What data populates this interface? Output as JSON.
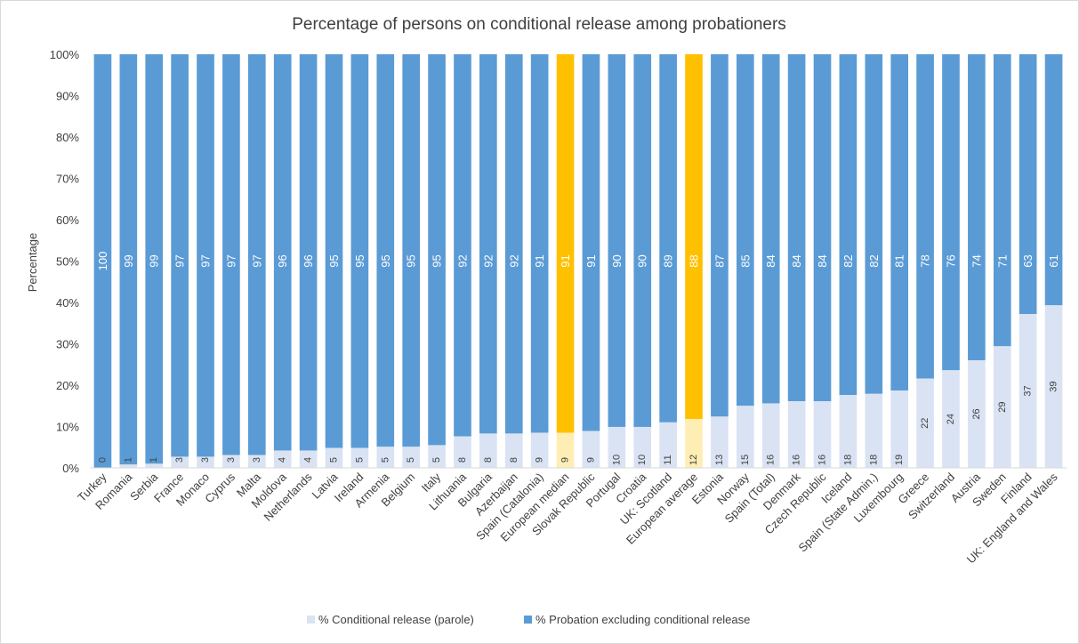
{
  "chart_data": {
    "type": "bar",
    "stacked": true,
    "title": "Percentage of persons on conditional release among probationers",
    "ylabel": "Percentage",
    "ylim": [
      0,
      100
    ],
    "yticks": [
      "0%",
      "10%",
      "20%",
      "30%",
      "40%",
      "50%",
      "60%",
      "70%",
      "80%",
      "90%",
      "100%"
    ],
    "grid": false,
    "legend_position": "bottom",
    "categories": [
      "Turkey",
      "Romania",
      "Serbia",
      "France",
      "Monaco",
      "Cyprus",
      "Malta",
      "Moldova",
      "Netherlands",
      "Latvia",
      "Ireland",
      "Armenia",
      "Belgium",
      "Italy",
      "Lithuania",
      "Bulgaria",
      "Azerbaijan",
      "Spain (Catalonia)",
      "European median",
      "Slovak Republic",
      "Portugal",
      "Croatia",
      "UK: Scotland",
      "European average",
      "Estonia",
      "Norway",
      "Spain (Total)",
      "Denmark",
      "Czech Republic",
      "Iceland",
      "Spain (State Admin.)",
      "Luxembourg",
      "Greece",
      "Switzerland",
      "Austria",
      "Sweden",
      "Finland",
      "UK: England and Wales"
    ],
    "highlighted_categories": [
      "European median",
      "European average"
    ],
    "series": [
      {
        "name": "% Conditional release (parole)",
        "color": "#dae3f3",
        "highlight_color": "#ffeeb3",
        "values": [
          0,
          1,
          1,
          3,
          3,
          3,
          3,
          4,
          4,
          5,
          5,
          5,
          5,
          5,
          8,
          8,
          8,
          9,
          9,
          9,
          10,
          10,
          11,
          12,
          13,
          15,
          16,
          16,
          16,
          18,
          18,
          19,
          22,
          24,
          26,
          29,
          37,
          39
        ],
        "bar_heights": [
          0,
          0.8,
          1,
          2.7,
          2.7,
          3.1,
          3.1,
          4.2,
          4.2,
          4.8,
          4.8,
          5.1,
          5.1,
          5.5,
          7.6,
          8.3,
          8.3,
          8.5,
          8.5,
          8.9,
          9.9,
          9.9,
          11,
          11.8,
          12.4,
          15,
          15.6,
          16.1,
          16.1,
          17.6,
          17.9,
          18.7,
          21.6,
          23.6,
          26,
          29.4,
          37.2,
          39.3
        ]
      },
      {
        "name": "% Probation excluding conditional release",
        "color": "#5b9bd5",
        "highlight_color": "#ffc000",
        "values": [
          100,
          99,
          99,
          97,
          97,
          97,
          97,
          96,
          96,
          95,
          95,
          95,
          95,
          95,
          92,
          92,
          92,
          91,
          91,
          91,
          90,
          90,
          89,
          88,
          87,
          85,
          84,
          84,
          84,
          82,
          82,
          81,
          78,
          76,
          74,
          71,
          63,
          61
        ]
      }
    ]
  }
}
